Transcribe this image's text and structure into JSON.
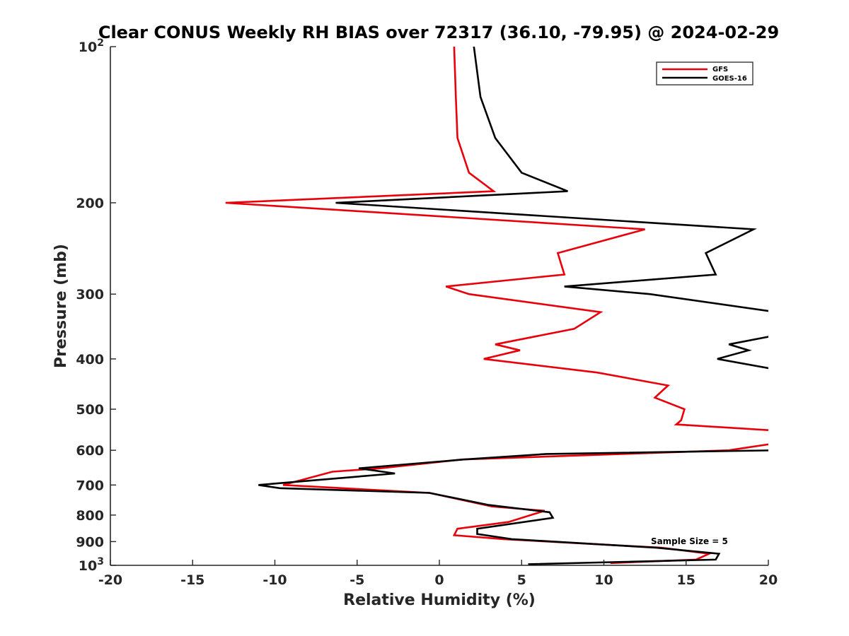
{
  "chart_data": {
    "type": "line",
    "title": "Clear CONUS Weekly RH BIAS over 72317 (36.10, -79.95) @ 2024-02-29",
    "xlabel": "Relative Humidity (%)",
    "ylabel": "Pressure (mb)",
    "xlim": [
      -20,
      20
    ],
    "ylim": [
      100,
      1000
    ],
    "yscale": "log",
    "y_reversed": true,
    "grid": false,
    "legend_position": "top-right",
    "x_ticks": [
      "-20",
      "-15",
      "-10",
      "-5",
      "0",
      "5",
      "10",
      "15",
      "20"
    ],
    "y_ticks": [
      {
        "value": 100,
        "base": "10",
        "exp": "2"
      },
      {
        "value": 200,
        "label": "200"
      },
      {
        "value": 300,
        "label": "300"
      },
      {
        "value": 400,
        "label": "400"
      },
      {
        "value": 500,
        "label": "500"
      },
      {
        "value": 600,
        "label": "600"
      },
      {
        "value": 700,
        "label": "700"
      },
      {
        "value": 800,
        "label": "800"
      },
      {
        "value": 900,
        "label": "900"
      },
      {
        "value": 1000,
        "base": "10",
        "exp": "3"
      }
    ],
    "series": [
      {
        "name": "GFS",
        "color": "#e8000b",
        "points": [
          [
            0.9,
            100
          ],
          [
            1.0,
            125
          ],
          [
            1.1,
            150
          ],
          [
            1.8,
            175
          ],
          [
            3.3,
            190
          ],
          [
            -13,
            200
          ],
          [
            12.5,
            225
          ],
          [
            7.2,
            250
          ],
          [
            7.6,
            275
          ],
          [
            0.4,
            290
          ],
          [
            1.8,
            300
          ],
          [
            9.8,
            325
          ],
          [
            8.2,
            350
          ],
          [
            3.4,
            375
          ],
          [
            4.9,
            385
          ],
          [
            2.7,
            400
          ],
          [
            9.6,
            425
          ],
          [
            13.9,
            450
          ],
          [
            13.1,
            475
          ],
          [
            14.9,
            500
          ],
          [
            14.7,
            525
          ],
          [
            14.4,
            535
          ],
          [
            20.5,
            550
          ],
          [
            21.5,
            575
          ],
          [
            17.6,
            600
          ],
          [
            1.4,
            625
          ],
          [
            -3.6,
            650
          ],
          [
            -6.5,
            660
          ],
          [
            -9.5,
            700
          ],
          [
            -0.6,
            725
          ],
          [
            3.2,
            770
          ],
          [
            6.4,
            785
          ],
          [
            4.2,
            825
          ],
          [
            1.1,
            850
          ],
          [
            0.9,
            875
          ],
          [
            3.9,
            890
          ],
          [
            13.5,
            925
          ],
          [
            16.4,
            950
          ],
          [
            15.6,
            975
          ],
          [
            10.4,
            990
          ]
        ]
      },
      {
        "name": "GOES-16",
        "color": "#000000",
        "points": [
          [
            2.1,
            100
          ],
          [
            2.5,
            125
          ],
          [
            3.4,
            150
          ],
          [
            5.0,
            175
          ],
          [
            7.8,
            190
          ],
          [
            -6.3,
            200
          ],
          [
            19.1,
            225
          ],
          [
            16.2,
            250
          ],
          [
            16.8,
            275
          ],
          [
            7.6,
            290
          ],
          [
            12.8,
            300
          ],
          [
            20.5,
            325
          ],
          [
            22.5,
            350
          ],
          [
            17.6,
            375
          ],
          [
            18.8,
            385
          ],
          [
            16.9,
            400
          ],
          [
            21.5,
            425
          ],
          [
            22.5,
            575
          ],
          [
            20.5,
            600
          ],
          [
            6.5,
            610
          ],
          [
            1.5,
            625
          ],
          [
            -4.9,
            650
          ],
          [
            -2.7,
            665
          ],
          [
            -11.0,
            700
          ],
          [
            -9.7,
            710
          ],
          [
            -0.6,
            725
          ],
          [
            3.0,
            765
          ],
          [
            6.7,
            790
          ],
          [
            6.9,
            810
          ],
          [
            2.3,
            850
          ],
          [
            2.3,
            870
          ],
          [
            4.4,
            890
          ],
          [
            13.2,
            925
          ],
          [
            17.0,
            950
          ],
          [
            16.8,
            975
          ],
          [
            5.4,
            995
          ]
        ]
      }
    ],
    "annotations": [
      {
        "text": "Sample Size = 5",
        "x": 15.2,
        "y": 910
      }
    ]
  }
}
